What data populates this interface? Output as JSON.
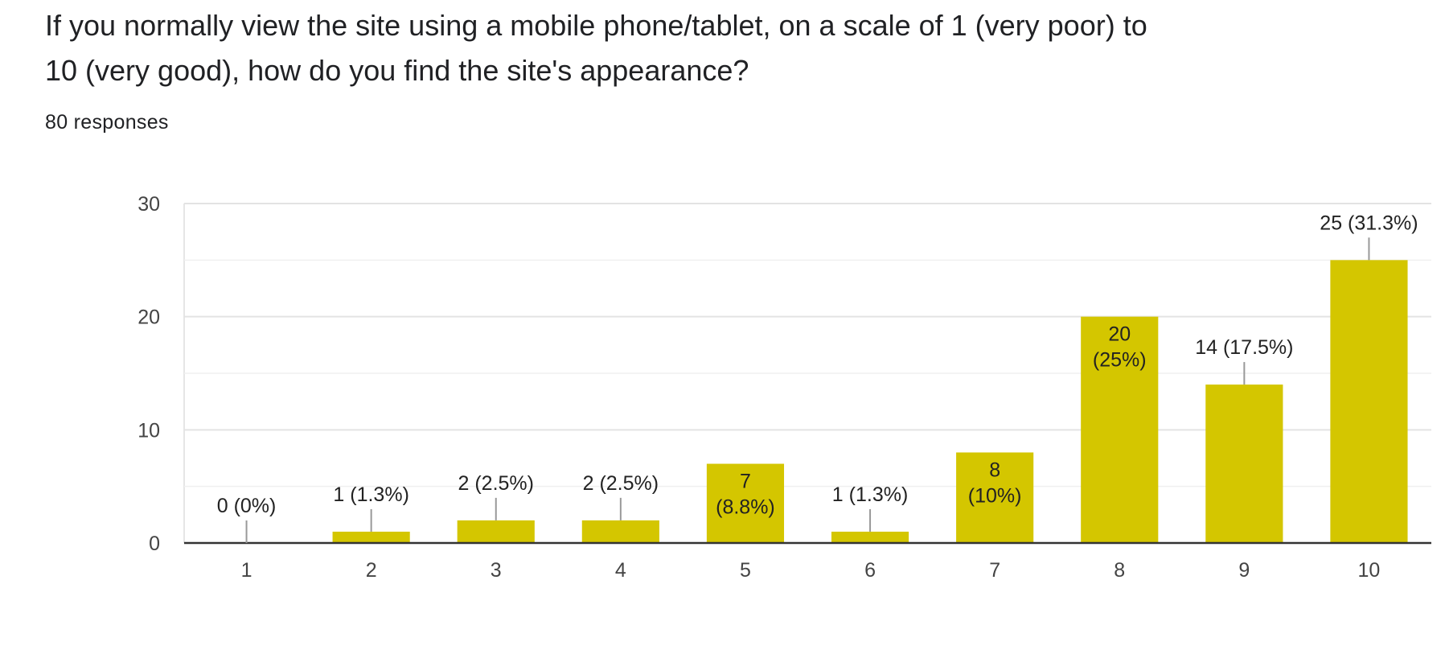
{
  "question": {
    "title": "If you normally view the site using a mobile phone/tablet, on a scale of 1 (very poor) to 10 (very good), how do you find the site's appearance?",
    "responses": "80 responses"
  },
  "colors": {
    "bar": "#d4c600",
    "text": "#202124",
    "axis": "#333333",
    "grid": "#e6e6e6",
    "leader": "#999999"
  },
  "chart_data": {
    "type": "bar",
    "categories": [
      "1",
      "2",
      "3",
      "4",
      "5",
      "6",
      "7",
      "8",
      "9",
      "10"
    ],
    "values": [
      0,
      1,
      2,
      2,
      7,
      1,
      8,
      20,
      14,
      25
    ],
    "data_labels": [
      "0 (0%)",
      "1 (1.3%)",
      "2 (2.5%)",
      "2 (2.5%)",
      "7 (8.8%)",
      "1 (1.3%)",
      "8 (10%)",
      "20 (25%)",
      "14 (17.5%)",
      "25 (31.3%)"
    ],
    "yticks": [
      0,
      10,
      20,
      30
    ],
    "ylim": [
      0,
      30
    ],
    "grid": true,
    "xlabel": "",
    "ylabel": ""
  }
}
